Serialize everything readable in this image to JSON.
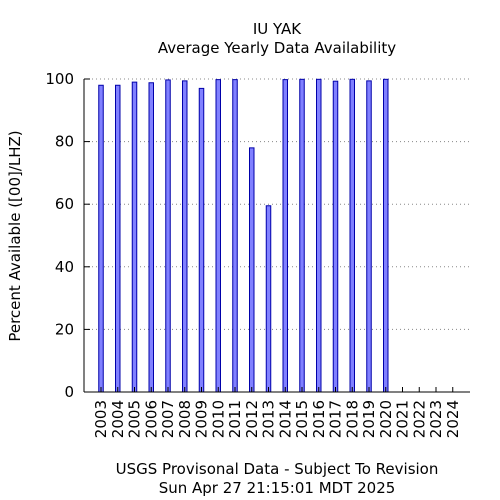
{
  "chart_data": {
    "type": "bar",
    "title": "IU YAK",
    "subtitle": "Average Yearly Data Availability",
    "xlabel": "",
    "ylabel": "Percent Available ([00]/LHZ)",
    "footer_lines": [
      "USGS Provisonal Data - Subject To Revision",
      "Sun Apr 27 21:15:01 MDT 2025"
    ],
    "categories": [
      "2003",
      "2004",
      "2005",
      "2006",
      "2007",
      "2008",
      "2009",
      "2010",
      "2011",
      "2012",
      "2013",
      "2014",
      "2015",
      "2016",
      "2017",
      "2018",
      "2019",
      "2020",
      "2021",
      "2022",
      "2023",
      "2024"
    ],
    "values": [
      98,
      98,
      99,
      98.8,
      99.7,
      99.4,
      97,
      99.8,
      99.8,
      78,
      59.5,
      99.8,
      99.9,
      99.9,
      99.3,
      99.9,
      99.4,
      99.9,
      0,
      0,
      0,
      0
    ],
    "ylim": [
      0,
      100
    ],
    "yticks": [
      0,
      20,
      40,
      60,
      80,
      100
    ],
    "grid": "horizontal dotted",
    "bar_color": "#8080ff",
    "bar_edge_color": "#0000aa"
  }
}
